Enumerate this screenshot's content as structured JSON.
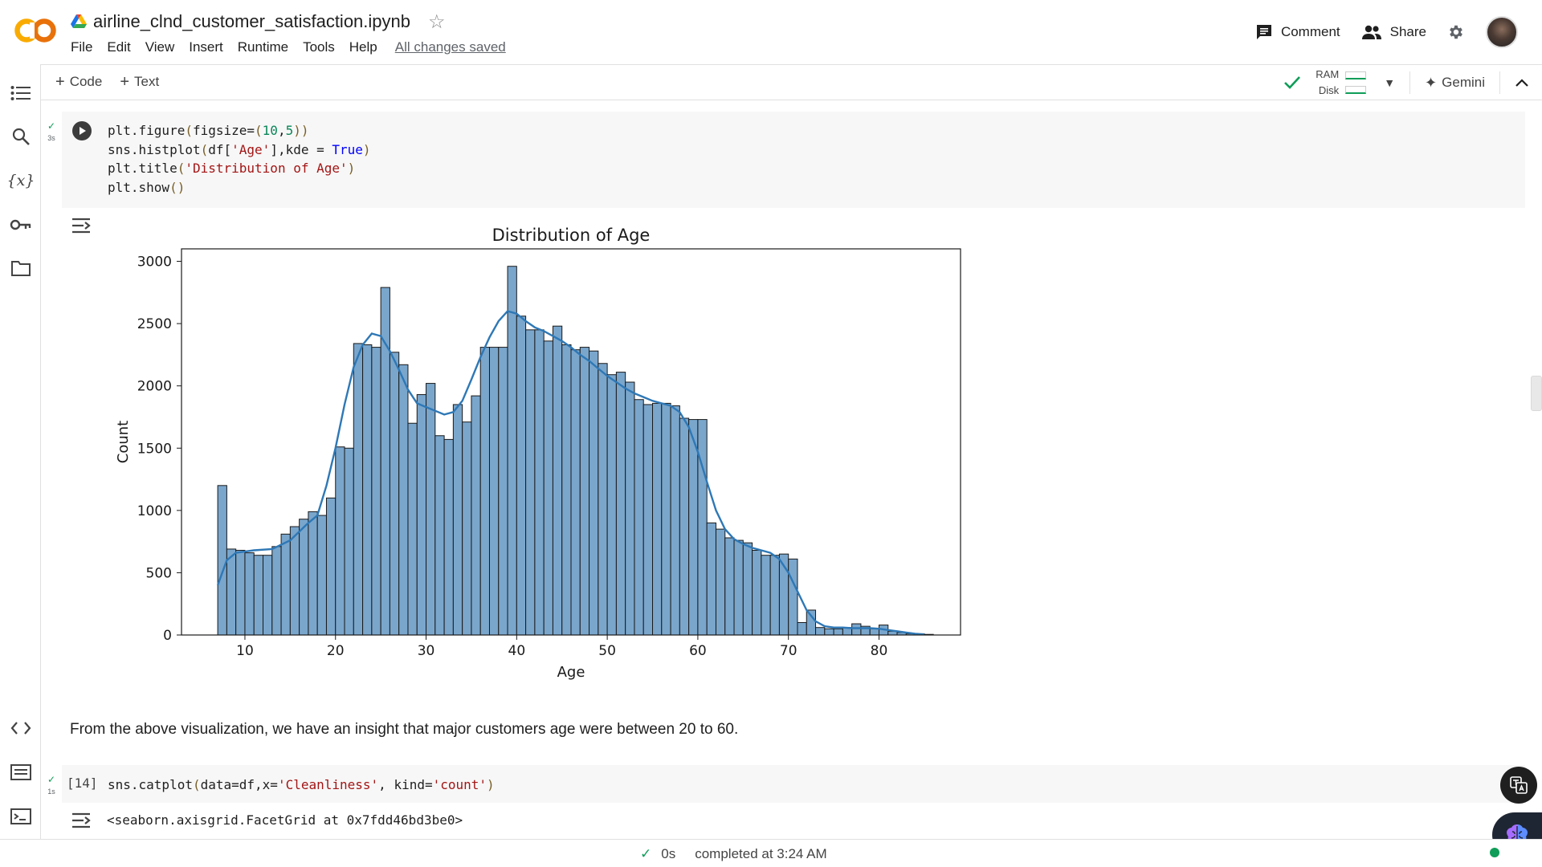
{
  "header": {
    "notebook_title": "airline_clnd_customer_satisfaction.ipynb",
    "menu": [
      "File",
      "Edit",
      "View",
      "Insert",
      "Runtime",
      "Tools",
      "Help"
    ],
    "save_status": "All changes saved",
    "comment_label": "Comment",
    "share_label": "Share"
  },
  "toolbar": {
    "add_code_label": "Code",
    "add_text_label": "Text",
    "ram_label": "RAM",
    "disk_label": "Disk",
    "gemini_label": "Gemini"
  },
  "cell1": {
    "exec_time": "3s",
    "code_lines": [
      "plt.figure(figsize=(10,5))",
      "sns.histplot(df['Age'],kde = True)",
      "plt.title('Distribution of Age')",
      "plt.show()"
    ]
  },
  "markdown": {
    "text": "From the above visualization, we have an insight that major customers age were between 20 to 60."
  },
  "cell2": {
    "prompt": "[14]",
    "exec_time": "1s",
    "code": "sns.catplot(data=df,x='Cleanliness', kind='count')",
    "output": "<seaborn.axisgrid.FacetGrid at 0x7fdd46bd3be0>"
  },
  "status_bar": {
    "duration": "0s",
    "completed": "completed at 3:24 AM"
  },
  "colors": {
    "bar_fill": "#7aa6cc",
    "kde_line": "#2e78b6",
    "success": "#0f9d58"
  },
  "chart_data": {
    "type": "bar",
    "title": "Distribution of Age",
    "xlabel": "Age",
    "ylabel": "Count",
    "xlim": [
      3,
      89
    ],
    "ylim": [
      0,
      3100
    ],
    "xticks": [
      10,
      20,
      30,
      40,
      50,
      60,
      70,
      80
    ],
    "yticks": [
      0,
      500,
      1000,
      1500,
      2000,
      2500,
      3000
    ],
    "bin_start": 7,
    "bin_width": 1,
    "x": [
      7,
      8,
      9,
      10,
      11,
      12,
      13,
      14,
      15,
      16,
      17,
      18,
      19,
      20,
      21,
      22,
      23,
      24,
      25,
      26,
      27,
      28,
      29,
      30,
      31,
      32,
      33,
      34,
      35,
      36,
      37,
      38,
      39,
      40,
      41,
      42,
      43,
      44,
      45,
      46,
      47,
      48,
      49,
      50,
      51,
      52,
      53,
      54,
      55,
      56,
      57,
      58,
      59,
      60,
      61,
      62,
      63,
      64,
      65,
      66,
      67,
      68,
      69,
      70,
      71,
      72,
      73,
      74,
      75,
      76,
      77,
      78,
      79,
      80,
      81,
      82,
      83,
      84,
      85
    ],
    "values": [
      1200,
      690,
      680,
      660,
      640,
      640,
      710,
      810,
      870,
      930,
      990,
      960,
      1100,
      1510,
      1500,
      2340,
      2330,
      2310,
      2790,
      2270,
      2170,
      1700,
      1930,
      2020,
      1600,
      1570,
      1850,
      1710,
      1920,
      2310,
      2310,
      2310,
      2960,
      2560,
      2450,
      2450,
      2360,
      2480,
      2330,
      2290,
      2310,
      2280,
      2180,
      2090,
      2110,
      2030,
      1890,
      1850,
      1860,
      1860,
      1840,
      1740,
      1730,
      1730,
      900,
      850,
      780,
      760,
      740,
      680,
      640,
      640,
      650,
      610,
      100,
      200,
      60,
      50,
      50,
      60,
      90,
      70,
      50,
      80,
      30,
      20,
      10,
      10,
      5
    ],
    "kde": [
      [
        7,
        400
      ],
      [
        8,
        600
      ],
      [
        9,
        660
      ],
      [
        11,
        680
      ],
      [
        13,
        690
      ],
      [
        15,
        760
      ],
      [
        17,
        900
      ],
      [
        18,
        960
      ],
      [
        19,
        1200
      ],
      [
        20,
        1500
      ],
      [
        21,
        1850
      ],
      [
        22,
        2150
      ],
      [
        23,
        2330
      ],
      [
        24,
        2420
      ],
      [
        25,
        2400
      ],
      [
        26,
        2280
      ],
      [
        27,
        2130
      ],
      [
        28,
        1970
      ],
      [
        29,
        1860
      ],
      [
        30,
        1830
      ],
      [
        31,
        1800
      ],
      [
        32,
        1770
      ],
      [
        33,
        1790
      ],
      [
        34,
        1880
      ],
      [
        35,
        2050
      ],
      [
        36,
        2230
      ],
      [
        37,
        2390
      ],
      [
        38,
        2520
      ],
      [
        39,
        2600
      ],
      [
        40,
        2580
      ],
      [
        41,
        2520
      ],
      [
        42,
        2470
      ],
      [
        43,
        2440
      ],
      [
        44,
        2400
      ],
      [
        45,
        2360
      ],
      [
        46,
        2310
      ],
      [
        47,
        2250
      ],
      [
        48,
        2200
      ],
      [
        49,
        2140
      ],
      [
        50,
        2080
      ],
      [
        51,
        2030
      ],
      [
        52,
        1980
      ],
      [
        53,
        1940
      ],
      [
        54,
        1910
      ],
      [
        55,
        1880
      ],
      [
        56,
        1860
      ],
      [
        57,
        1840
      ],
      [
        58,
        1790
      ],
      [
        59,
        1670
      ],
      [
        60,
        1470
      ],
      [
        61,
        1230
      ],
      [
        62,
        1000
      ],
      [
        63,
        850
      ],
      [
        64,
        770
      ],
      [
        65,
        730
      ],
      [
        66,
        700
      ],
      [
        67,
        680
      ],
      [
        68,
        660
      ],
      [
        69,
        610
      ],
      [
        70,
        500
      ],
      [
        71,
        350
      ],
      [
        72,
        200
      ],
      [
        73,
        110
      ],
      [
        74,
        70
      ],
      [
        75,
        60
      ],
      [
        76,
        60
      ],
      [
        77,
        55
      ],
      [
        78,
        55
      ],
      [
        79,
        55
      ],
      [
        80,
        50
      ],
      [
        81,
        40
      ],
      [
        82,
        30
      ],
      [
        83,
        20
      ],
      [
        84,
        10
      ],
      [
        85,
        5
      ]
    ]
  }
}
